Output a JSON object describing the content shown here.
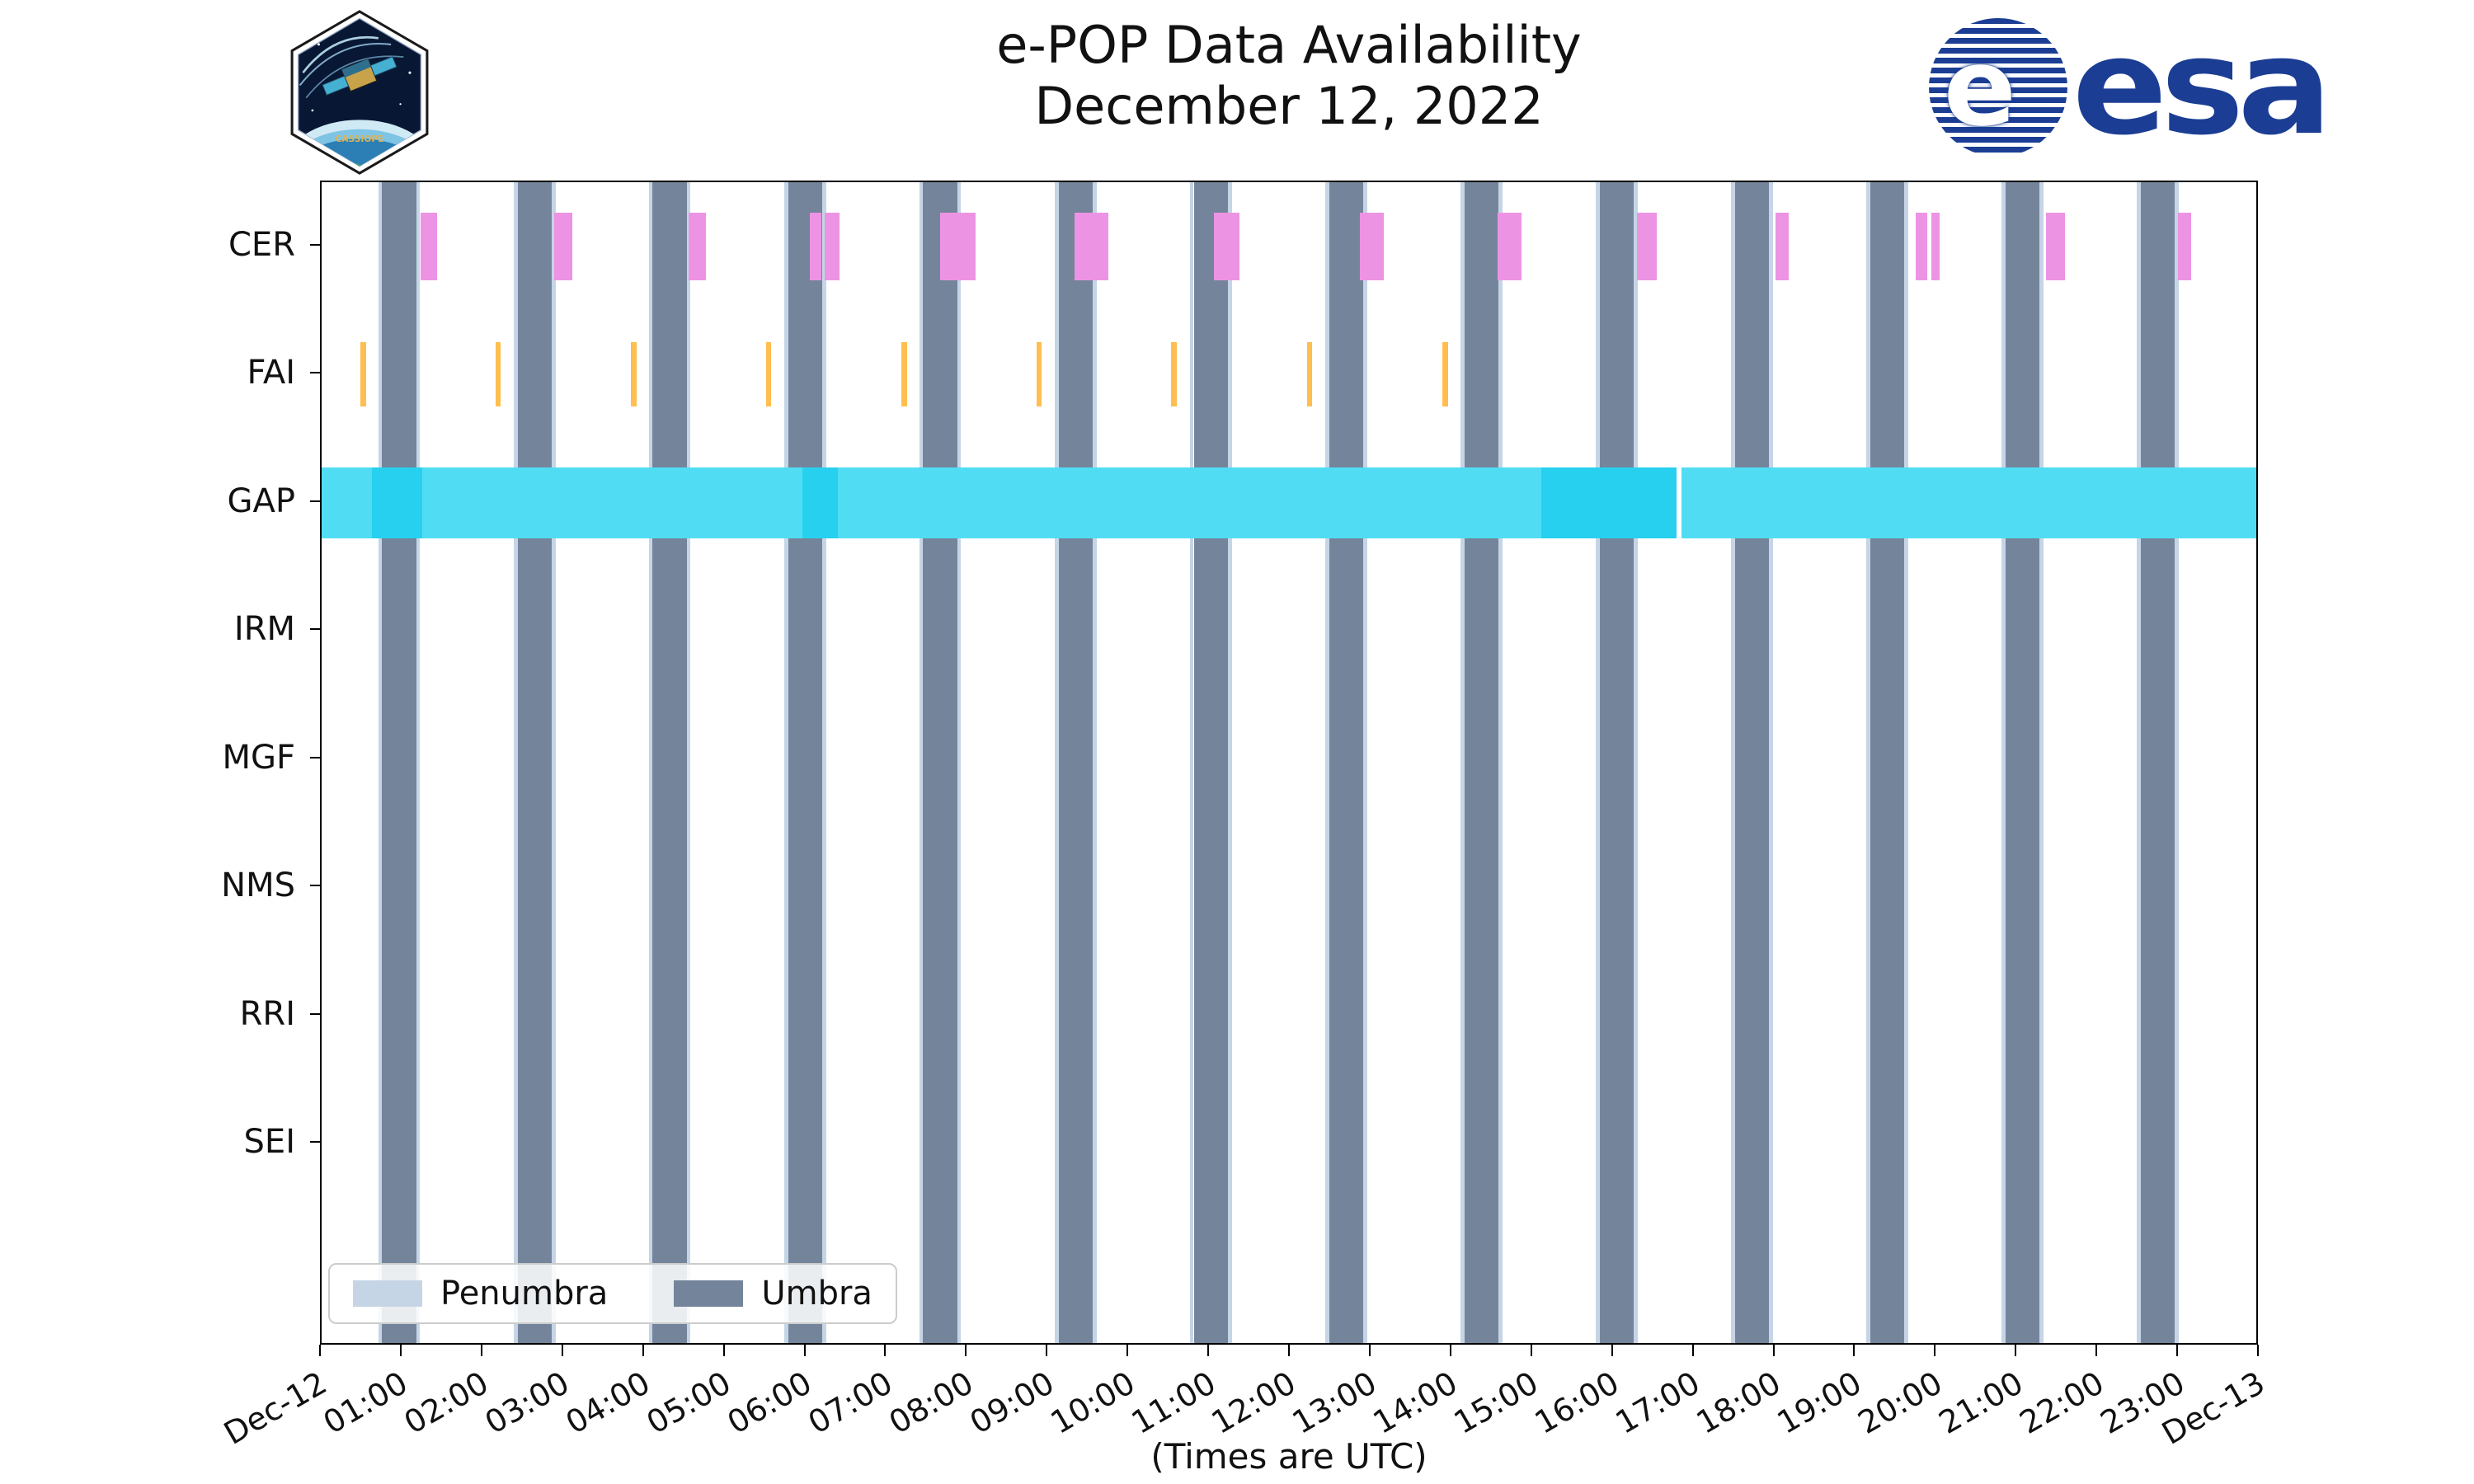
{
  "meta": {
    "title": "e-POP Data Availability",
    "subtitle": "December 12, 2022",
    "footer": "(Times are UTC)"
  },
  "logos": {
    "cassiope_patch": "CASSIOPE",
    "esa": "esa",
    "esa_emblem_letter": "e"
  },
  "chart_data": {
    "type": "timeline",
    "title": "e-POP Data Availability",
    "subtitle": "December 12, 2022",
    "xlabel": "(Times are UTC)",
    "xlim_hours": [
      0,
      24
    ],
    "rows": [
      "CER",
      "FAI",
      "GAP",
      "IRM",
      "MGF",
      "NMS",
      "RRI",
      "SEI"
    ],
    "x_tick_labels": [
      "Dec-12",
      "01:00",
      "02:00",
      "03:00",
      "04:00",
      "05:00",
      "06:00",
      "07:00",
      "08:00",
      "09:00",
      "10:00",
      "11:00",
      "12:00",
      "13:00",
      "14:00",
      "15:00",
      "16:00",
      "17:00",
      "18:00",
      "19:00",
      "20:00",
      "21:00",
      "22:00",
      "23:00",
      "Dec-13"
    ],
    "colors": {
      "umbra": "#74859B",
      "penumbra": "#C6D5E5",
      "cer": "#ED93E4",
      "fai": "#FFBE4F",
      "gap": "#50DDF4",
      "gap_overlap": "#27D0EE",
      "axis": "#000000",
      "esa_blue": "#1b3e94"
    },
    "umbra_intervals_hours": [
      [
        0.75,
        1.17
      ],
      [
        2.43,
        2.85
      ],
      [
        4.1,
        4.52
      ],
      [
        5.78,
        6.2
      ],
      [
        7.45,
        7.87
      ],
      [
        9.13,
        9.55
      ],
      [
        10.8,
        11.22
      ],
      [
        12.48,
        12.9
      ],
      [
        14.15,
        14.57
      ],
      [
        15.83,
        16.25
      ],
      [
        17.5,
        17.92
      ],
      [
        19.18,
        19.6
      ],
      [
        20.85,
        21.27
      ],
      [
        22.53,
        22.95
      ]
    ],
    "penumbra_margin_hours": 0.05,
    "series": [
      {
        "row": "CER",
        "color": "#ED93E4",
        "intervals_hours": [
          [
            1.23,
            1.43
          ],
          [
            2.88,
            3.1
          ],
          [
            4.54,
            4.76
          ],
          [
            6.05,
            6.19
          ],
          [
            6.23,
            6.41
          ],
          [
            7.66,
            8.1
          ],
          [
            9.32,
            9.74
          ],
          [
            11.05,
            11.37
          ],
          [
            12.86,
            13.15
          ],
          [
            14.56,
            14.86
          ],
          [
            16.29,
            16.53
          ],
          [
            18.0,
            18.17
          ],
          [
            19.74,
            19.88
          ],
          [
            19.94,
            20.04
          ],
          [
            21.35,
            21.59
          ],
          [
            22.99,
            23.15
          ]
        ]
      },
      {
        "row": "FAI",
        "color": "#FFBE4F",
        "intervals_hours": [
          [
            0.48,
            0.55
          ],
          [
            2.15,
            2.22
          ],
          [
            3.83,
            3.9
          ],
          [
            5.5,
            5.57
          ],
          [
            7.18,
            7.25
          ],
          [
            8.85,
            8.92
          ],
          [
            10.52,
            10.59
          ],
          [
            12.2,
            12.27
          ],
          [
            13.88,
            13.95
          ]
        ]
      },
      {
        "row": "GAP",
        "color": "#50DDF4",
        "intervals_hours": [
          [
            0.0,
            16.78
          ],
          [
            16.84,
            24.0
          ]
        ],
        "overlap_intervals_hours": [
          [
            0.62,
            1.25
          ],
          [
            5.95,
            6.39
          ],
          [
            15.1,
            16.78
          ]
        ]
      },
      {
        "row": "IRM",
        "color": null,
        "intervals_hours": []
      },
      {
        "row": "MGF",
        "color": null,
        "intervals_hours": []
      },
      {
        "row": "NMS",
        "color": null,
        "intervals_hours": []
      },
      {
        "row": "RRI",
        "color": null,
        "intervals_hours": []
      },
      {
        "row": "SEI",
        "color": null,
        "intervals_hours": []
      }
    ],
    "legend": [
      {
        "label": "Penumbra",
        "color": "#C6D5E5"
      },
      {
        "label": "Umbra",
        "color": "#74859B"
      }
    ],
    "legend_position": "lower left",
    "grid": false
  }
}
